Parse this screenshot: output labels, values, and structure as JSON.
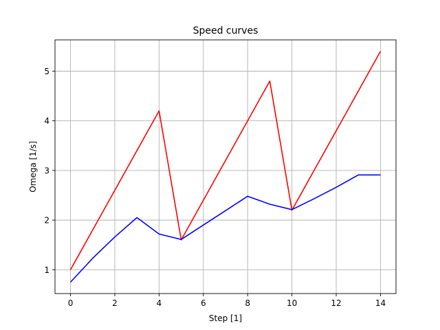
{
  "chart_data": {
    "type": "line",
    "title": "Speed curves",
    "xlabel": "Step [1]",
    "ylabel": "Omega [1/s]",
    "xlim": [
      -0.7,
      14.7
    ],
    "ylim": [
      0.52,
      5.63
    ],
    "xticks": [
      0,
      2,
      4,
      6,
      8,
      10,
      12,
      14
    ],
    "xtick_labels": [
      "0",
      "2",
      "4",
      "6",
      "8",
      "10",
      "12",
      "14"
    ],
    "yticks": [
      1,
      2,
      3,
      4,
      5
    ],
    "ytick_labels": [
      "1",
      "2",
      "3",
      "4",
      "5"
    ],
    "grid": true,
    "series": [
      {
        "color": "#ff0000",
        "x": [
          0,
          4,
          5,
          9,
          10,
          14
        ],
        "y": [
          1.0,
          4.2,
          1.6,
          4.8,
          2.2,
          5.4
        ]
      },
      {
        "color": "#0000ff",
        "x": [
          0,
          1,
          2,
          3,
          4,
          5,
          6,
          7,
          8,
          9,
          10,
          11,
          12,
          13,
          14
        ],
        "y": [
          0.75,
          1.23,
          1.66,
          2.05,
          1.72,
          1.61,
          1.9,
          2.19,
          2.48,
          2.32,
          2.21,
          2.43,
          2.66,
          2.91,
          2.91
        ]
      }
    ]
  }
}
